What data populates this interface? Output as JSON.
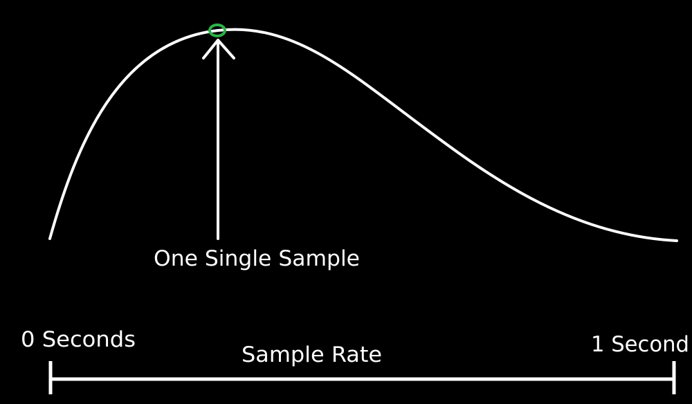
{
  "labels": {
    "sample": "One Single Sample",
    "start": "0 Seconds",
    "end": "1 Second",
    "rate": "Sample Rate"
  },
  "colors": {
    "background": "#000000",
    "line": "#ffffff",
    "marker": "#2db34a"
  }
}
